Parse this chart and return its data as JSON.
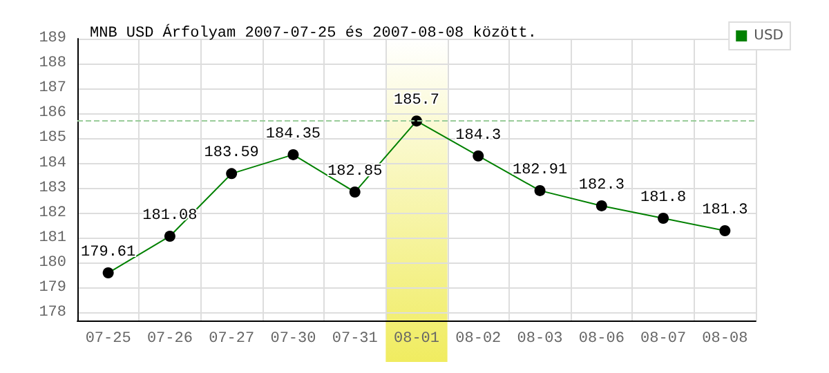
{
  "chart_data": {
    "type": "line",
    "title": "MNB USD Árfolyam 2007-07-25 és 2007-08-08 között.",
    "categories": [
      "07-25",
      "07-26",
      "07-27",
      "07-30",
      "07-31",
      "08-01",
      "08-02",
      "08-03",
      "08-06",
      "08-07",
      "08-08"
    ],
    "series": [
      {
        "name": "USD",
        "color": "#008000",
        "values": [
          179.61,
          181.08,
          183.59,
          184.35,
          182.85,
          185.7,
          184.3,
          182.91,
          182.3,
          181.8,
          181.3
        ]
      }
    ],
    "ylim": [
      177.7,
      189
    ],
    "yticks": [
      178,
      179,
      180,
      181,
      182,
      183,
      184,
      185,
      186,
      187,
      188,
      189
    ],
    "grid": true,
    "legend": "top right",
    "marker": "circle",
    "line_style": "solid",
    "data_labels": true,
    "ref_lines": [
      {
        "axis": "y",
        "value": 185.7,
        "color": "#99cc99",
        "line_style": "dashed"
      }
    ],
    "bands": [
      {
        "axis": "x",
        "from": "08-01",
        "to": "08-01",
        "color": "#f0ec60"
      }
    ]
  }
}
